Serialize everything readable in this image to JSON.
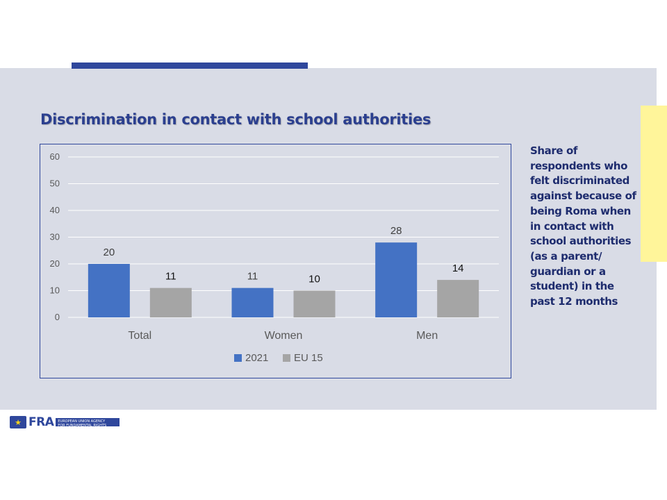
{
  "slide": {
    "title": "Discrimination in contact with school authorities",
    "side_note": "Share of\nrespondents who\nfelt discriminated\nagainst because of\nbeing Roma when\nin contact with\nschool authorities\n(as a parent/\nguardian or a\nstudent) in the\npast 12 months",
    "logo": {
      "text": "FRA",
      "agency": "EUROPEAN UNION AGENCY\nFOR FUNDAMENTAL RIGHTS"
    }
  },
  "colors": {
    "accent": "#2f479c",
    "band": "#d9dce6",
    "highlight": "#fff59a",
    "series_2021": "#4472c4",
    "series_eu15": "#a5a5a5"
  },
  "chart_data": {
    "type": "bar",
    "categories": [
      "Total",
      "Women",
      "Men"
    ],
    "series": [
      {
        "name": "2021",
        "values": [
          20,
          11,
          28
        ]
      },
      {
        "name": "EU 15",
        "values": [
          11,
          10,
          14
        ]
      }
    ],
    "ylim": [
      0,
      60
    ],
    "yticks": [
      0,
      10,
      20,
      30,
      40,
      50,
      60
    ],
    "grid": true,
    "legend": "bottom"
  }
}
